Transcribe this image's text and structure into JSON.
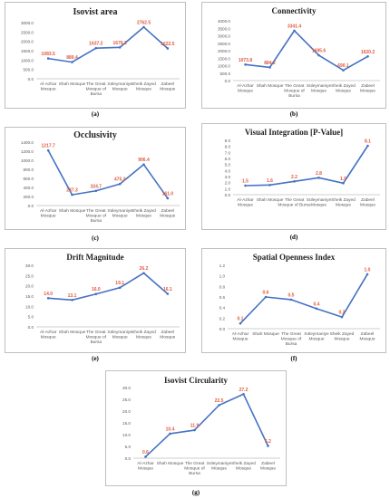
{
  "charts": [
    {
      "label": "(a)",
      "chart_data": {
        "type": "line",
        "title": "Isovist area",
        "categories": [
          "Al-Azhar\nMosque",
          "Shah Mosque",
          "The Great\nMosque of\nBursa",
          "Süleymaniye\nMosque",
          "Sheik Zayed\nMosque",
          "Zabeel\nMosque"
        ],
        "values": [
          1083.5,
          889.4,
          1637.2,
          1676.3,
          2762.5,
          1622.5
        ],
        "data_labels": [
          "1083.5",
          "889.4",
          "1637.2",
          "1676.3",
          "2762.5",
          "1622.5"
        ],
        "ylim": [
          0,
          3000
        ],
        "yticks": [
          "0.0",
          "500.0",
          "1000.0",
          "1500.0",
          "2000.0",
          "2500.0",
          "3000.0"
        ],
        "grid": false
      }
    },
    {
      "label": "(b)",
      "chart_data": {
        "type": "line",
        "title": "Connectivity",
        "categories": [
          "Al-Azhar\nMosque",
          "Shah Mosque",
          "The Great\nMosque of\nBursa",
          "Süleymaniye\nMosque",
          "Sheik Zayed\nMosque",
          "Zabeel\nMosque"
        ],
        "values": [
          1073.8,
          884.2,
          3341.4,
          1695.6,
          690.1,
          1620.2
        ],
        "data_labels": [
          "1073.8",
          "884.2",
          "3341.4",
          "1695.6",
          "690.1",
          "1620.2"
        ],
        "ylim": [
          0,
          4000
        ],
        "yticks": [
          "0.0",
          "500.0",
          "1000.0",
          "1500.0",
          "2000.0",
          "2500.0",
          "3000.0",
          "3500.0",
          "4000.0"
        ],
        "grid": false
      }
    },
    {
      "label": "(c)",
      "chart_data": {
        "type": "line",
        "title": "Occlusivity",
        "categories": [
          "Al-Azhar\nMosque",
          "Shah Mosque",
          "The Great\nMosque of\nBursa",
          "Süleymaniye\nMosque",
          "Sheik Zayed\nMosque",
          "Zabeel\nMosque"
        ],
        "values": [
          1217.7,
          237.3,
          324.7,
          475.3,
          906.4,
          161.0
        ],
        "data_labels": [
          "1217.7",
          "237.3",
          "324.7",
          "475.3",
          "906.4",
          "161.0"
        ],
        "ylim": [
          0,
          1400
        ],
        "yticks": [
          "0.0",
          "200.0",
          "400.0",
          "600.0",
          "800.0",
          "1000.0",
          "1200.0",
          "1400.0"
        ],
        "grid": false
      }
    },
    {
      "label": "(d)",
      "chart_data": {
        "type": "line",
        "title": "Visual Integration [P-Value]",
        "categories": [
          "Al-Azhar\nMosque",
          "Shah Mosque",
          "The Great\nMosque of Bursa",
          "Süleymaniye\nMosque",
          "Sheik Zayed\nMosque",
          "Zabeel\nMosque"
        ],
        "values": [
          1.5,
          1.6,
          2.2,
          2.8,
          1.9,
          8.1
        ],
        "data_labels": [
          "1.5",
          "1.6",
          "2.2",
          "2.8",
          "1.9",
          "8.1"
        ],
        "ylim": [
          0,
          9
        ],
        "yticks": [
          "0.0",
          "1.0",
          "2.0",
          "3.0",
          "4.0",
          "5.0",
          "6.0",
          "7.0",
          "8.0",
          "9.0"
        ],
        "grid": false
      }
    },
    {
      "label": "(e)",
      "chart_data": {
        "type": "line",
        "title": "Drift Magnitude",
        "categories": [
          "Al-Azhar\nMosque",
          "Shah Mosque",
          "The Great\nMosque of\nBursa",
          "Süleymaniye\nMosque",
          "Sheik Zayed\nMosque",
          "Zabeel\nMosque"
        ],
        "values": [
          14.0,
          13.1,
          16.0,
          19.1,
          26.2,
          16.1
        ],
        "data_labels": [
          "14.0",
          "13.1",
          "16.0",
          "19.1",
          "26.2",
          "16.1"
        ],
        "ylim": [
          0,
          30
        ],
        "yticks": [
          "0.0",
          "5.0",
          "10.0",
          "15.0",
          "20.0",
          "25.0",
          "30.0"
        ],
        "grid": false
      }
    },
    {
      "label": "(f)",
      "chart_data": {
        "type": "line",
        "title": "Spatial Openness Index",
        "categories": [
          "Al-Azhar\nMosque",
          "Shah Mosque",
          "The Great\nMosque of\nBursa",
          "Süleymaniye\nMosque",
          "Sheik Zayed\nMosque",
          "Zabeel\nMosque"
        ],
        "values": [
          0.1,
          0.6,
          0.55,
          0.38,
          0.22,
          1.03
        ],
        "data_labels": [
          "0.1",
          "0.6",
          "0.5",
          "0.4",
          "0.2",
          "1.0"
        ],
        "ylim": [
          0,
          1.2
        ],
        "yticks": [
          "0.0",
          "0.2",
          "0.4",
          "0.6",
          "0.8",
          "1.0",
          "1.2"
        ],
        "grid": false
      }
    },
    {
      "label": "(g)",
      "chart_data": {
        "type": "line",
        "title": "Isovist Circularity",
        "categories": [
          "Al-Azhar\nMosque",
          "Shah Mosque",
          "The Great\nMosque of\nBursa",
          "Süleymaniye\nMosque",
          "Sheik Zayed\nMosque",
          "Zabeel\nMosque"
        ],
        "values": [
          0.6,
          10.4,
          11.9,
          22.5,
          27.2,
          5.2
        ],
        "data_labels": [
          "0.6",
          "10.4",
          "11.9",
          "22.5",
          "27.2",
          "5.2"
        ],
        "ylim": [
          0,
          30
        ],
        "yticks": [
          "0.0",
          "5.0",
          "10.0",
          "15.0",
          "20.0",
          "25.0",
          "30.0"
        ],
        "grid": false
      }
    }
  ],
  "colors": {
    "line": "#4472c4",
    "data_label": "#e05a3c",
    "axis_text": "#595959",
    "axis_line": "#bfbfbf"
  }
}
